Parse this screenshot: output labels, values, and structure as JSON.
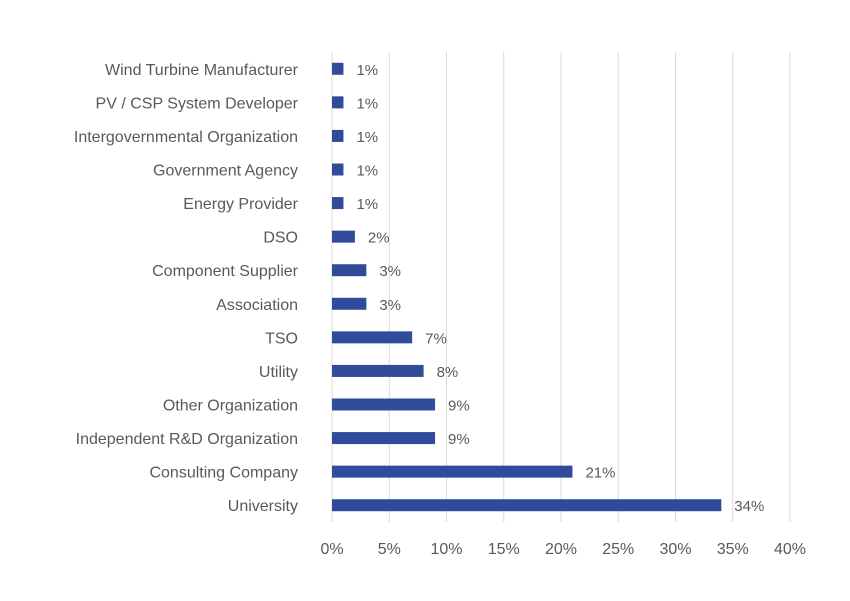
{
  "chart_data": {
    "type": "bar",
    "orientation": "horizontal",
    "categories": [
      "Wind Turbine Manufacturer",
      "PV / CSP System Developer",
      "Intergovernmental Organization",
      "Government Agency",
      "Energy Provider",
      "DSO",
      "Component Supplier",
      "Association",
      "TSO",
      "Utility",
      "Other Organization",
      "Independent R&D Organization",
      "Consulting Company",
      "University"
    ],
    "values": [
      1,
      1,
      1,
      1,
      1,
      2,
      3,
      3,
      7,
      8,
      9,
      9,
      21,
      34
    ],
    "data_labels": [
      "1%",
      "1%",
      "1%",
      "1%",
      "1%",
      "2%",
      "3%",
      "3%",
      "7%",
      "8%",
      "9%",
      "9%",
      "21%",
      "34%"
    ],
    "x_ticks": [
      0,
      5,
      10,
      15,
      20,
      25,
      30,
      35,
      40
    ],
    "x_tick_labels": [
      "0%",
      "5%",
      "10%",
      "15%",
      "20%",
      "25%",
      "30%",
      "35%",
      "40%"
    ],
    "xlim": [
      0,
      40
    ],
    "grid": "vertical",
    "legend": "none",
    "bar_color": "#2f4b99",
    "title": "",
    "xlabel": "",
    "ylabel": ""
  }
}
